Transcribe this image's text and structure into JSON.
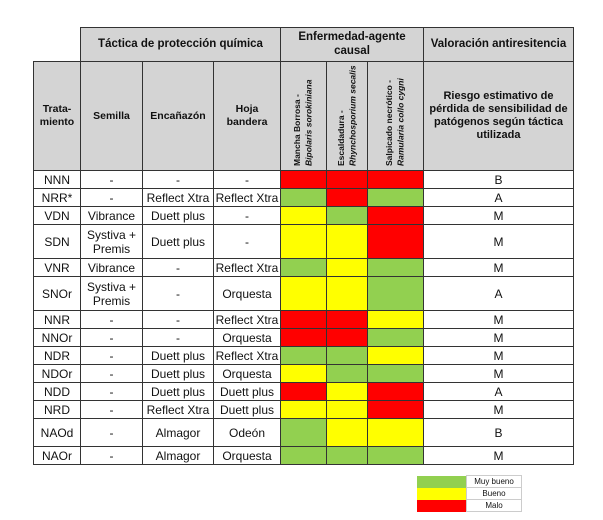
{
  "header": {
    "group_tactic": "Táctica de protección química",
    "group_disease": "Enfermedad-agente causal",
    "group_valuation": "Valoración antiresitencia",
    "col_treatment": "Trata-miento",
    "col_seed": "Semilla",
    "col_cane": "Encañazón",
    "col_flag": "Hoja bandera",
    "disease1_name": "Mancha Borrosa -",
    "disease1_agent": "Bipolaris sorokiniana",
    "disease2_name": "Escaldadura -",
    "disease2_agent": "Rhynchosporium secalis",
    "disease3_name": "Salpicado necrótico -",
    "disease3_agent": "Ramularia collo cygni",
    "col_risk": "Riesgo estimativo de pérdida de sensibilidad de patógenos según táctica utilizada"
  },
  "colors": {
    "muy_bueno": "#92d050",
    "bueno": "#ffff00",
    "malo": "#ff0000"
  },
  "rows": [
    {
      "t": "NNN",
      "s": "-",
      "e": "-",
      "h": "-",
      "d": [
        "malo",
        "malo",
        "malo"
      ],
      "r": "B",
      "size": "n"
    },
    {
      "t": "NRR*",
      "s": "-",
      "e": "Reflect Xtra",
      "h": "Reflect Xtra",
      "d": [
        "muy_bueno",
        "malo",
        "muy_bueno"
      ],
      "r": "A",
      "size": "n"
    },
    {
      "t": "VDN",
      "s": "Vibrance",
      "e": "Duett plus",
      "h": "-",
      "d": [
        "bueno",
        "muy_bueno",
        "malo"
      ],
      "r": "M",
      "size": "n"
    },
    {
      "t": "SDN",
      "s": "Systiva + Premis",
      "e": "Duett plus",
      "h": "-",
      "d": [
        "bueno",
        "bueno",
        "malo"
      ],
      "r": "M",
      "size": "tall"
    },
    {
      "t": "VNR",
      "s": "Vibrance",
      "e": "-",
      "h": "Reflect Xtra",
      "d": [
        "muy_bueno",
        "bueno",
        "muy_bueno"
      ],
      "r": "M",
      "size": "n"
    },
    {
      "t": "SNOr",
      "s": "Systiva + Premis",
      "e": "-",
      "h": "Orquesta",
      "d": [
        "bueno",
        "bueno",
        "muy_bueno"
      ],
      "r": "A",
      "size": "tall"
    },
    {
      "t": "NNR",
      "s": "-",
      "e": "-",
      "h": "Reflect Xtra",
      "d": [
        "malo",
        "malo",
        "bueno"
      ],
      "r": "M",
      "size": "n"
    },
    {
      "t": "NNOr",
      "s": "-",
      "e": "-",
      "h": "Orquesta",
      "d": [
        "malo",
        "malo",
        "muy_bueno"
      ],
      "r": "M",
      "size": "n"
    },
    {
      "t": "NDR",
      "s": "-",
      "e": "Duett plus",
      "h": "Reflect Xtra",
      "d": [
        "muy_bueno",
        "muy_bueno",
        "bueno"
      ],
      "r": "M",
      "size": "n"
    },
    {
      "t": "NDOr",
      "s": "-",
      "e": "Duett plus",
      "h": "Orquesta",
      "d": [
        "bueno",
        "muy_bueno",
        "muy_bueno"
      ],
      "r": "M",
      "size": "n"
    },
    {
      "t": "NDD",
      "s": "-",
      "e": "Duett plus",
      "h": "Duett plus",
      "d": [
        "malo",
        "bueno",
        "malo"
      ],
      "r": "A",
      "size": "n"
    },
    {
      "t": "NRD",
      "s": "-",
      "e": "Reflect Xtra",
      "h": "Duett plus",
      "d": [
        "bueno",
        "bueno",
        "malo"
      ],
      "r": "M",
      "size": "n"
    },
    {
      "t": "NAOd",
      "s": "-",
      "e": "Almagor",
      "h": "Odeón",
      "d": [
        "muy_bueno",
        "bueno",
        "bueno"
      ],
      "r": "B",
      "size": "mid"
    },
    {
      "t": "NAOr",
      "s": "-",
      "e": "Almagor",
      "h": "Orquesta",
      "d": [
        "muy_bueno",
        "muy_bueno",
        "muy_bueno"
      ],
      "r": "M",
      "size": "n"
    }
  ],
  "legend": [
    {
      "key": "muy_bueno",
      "label": "Muy bueno"
    },
    {
      "key": "bueno",
      "label": "Bueno"
    },
    {
      "key": "malo",
      "label": "Malo"
    }
  ]
}
